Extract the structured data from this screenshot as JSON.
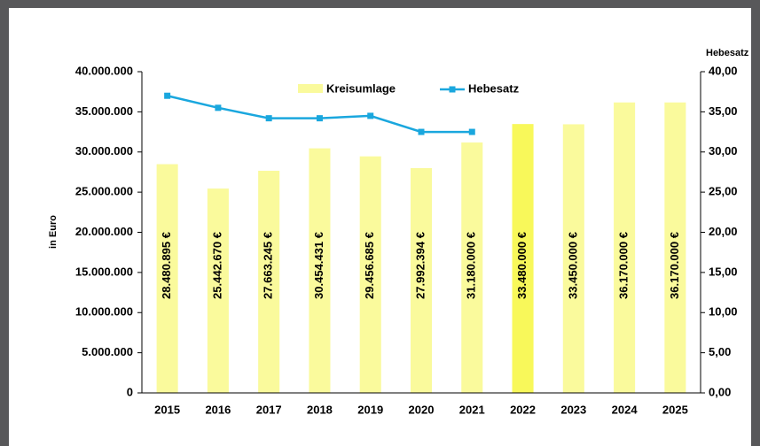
{
  "chart_data": {
    "type": "bar",
    "y_label": "in Euro",
    "y2_label": "Hebesatz",
    "categories": [
      "2015",
      "2016",
      "2017",
      "2018",
      "2019",
      "2020",
      "2021",
      "2022",
      "2023",
      "2024",
      "2025"
    ],
    "series": [
      {
        "name": "Kreisumlage",
        "type": "bar",
        "color": "#fafa9c",
        "colors": [
          "#fafa9c",
          "#fafa9c",
          "#fafa9c",
          "#fafa9c",
          "#fafa9c",
          "#fafa9c",
          "#fafa9c",
          "#f8f85a",
          "#fafa9c",
          "#fafa9c",
          "#fafa9c"
        ],
        "values": [
          28480895,
          25442670,
          27663245,
          30454431,
          29456685,
          27992394,
          31180000,
          33480000,
          33450000,
          36170000,
          36170000
        ],
        "value_labels": [
          "28.480.895 €",
          "25.442.670 €",
          "27.663.245 €",
          "30.454.431 €",
          "29.456.685 €",
          "27.992.394 €",
          "31.180.000 €",
          "33.480.000 €",
          "33.450.000 €",
          "36.170.000 €",
          "36.170.000 €"
        ]
      },
      {
        "name": "Hebesatz",
        "type": "line",
        "axis": "y2",
        "color": "#1aa7de",
        "values": [
          37.0,
          35.5,
          34.2,
          34.2,
          34.5,
          32.5,
          32.5,
          null,
          null,
          null,
          null
        ]
      }
    ],
    "ylim": [
      0,
      40000000
    ],
    "yticks": [
      0,
      {
        "value": 5000000,
        "label": "5.000.000"
      },
      {
        "value": 10000000,
        "label": "10.000.000"
      },
      {
        "value": 15000000,
        "label": "15.000.000"
      },
      {
        "value": 20000000,
        "label": "20.000.000"
      },
      {
        "value": 25000000,
        "label": "25.000.000"
      },
      {
        "value": 30000000,
        "label": "30.000.000"
      },
      {
        "value": 35000000,
        "label": "35.000.000"
      },
      {
        "value": 40000000,
        "label": "40.000.000"
      }
    ],
    "y2lim": [
      0,
      40
    ],
    "y2ticks": [
      {
        "value": 0,
        "label": "0,00"
      },
      {
        "value": 5,
        "label": "5,00"
      },
      {
        "value": 10,
        "label": "10,00"
      },
      {
        "value": 15,
        "label": "15,00"
      },
      {
        "value": 20,
        "label": "20,00"
      },
      {
        "value": 25,
        "label": "25,00"
      },
      {
        "value": 30,
        "label": "30,00"
      },
      {
        "value": 35,
        "label": "35,00"
      },
      {
        "value": 40,
        "label": "40,00"
      }
    ],
    "grid": false,
    "legend": "top"
  }
}
